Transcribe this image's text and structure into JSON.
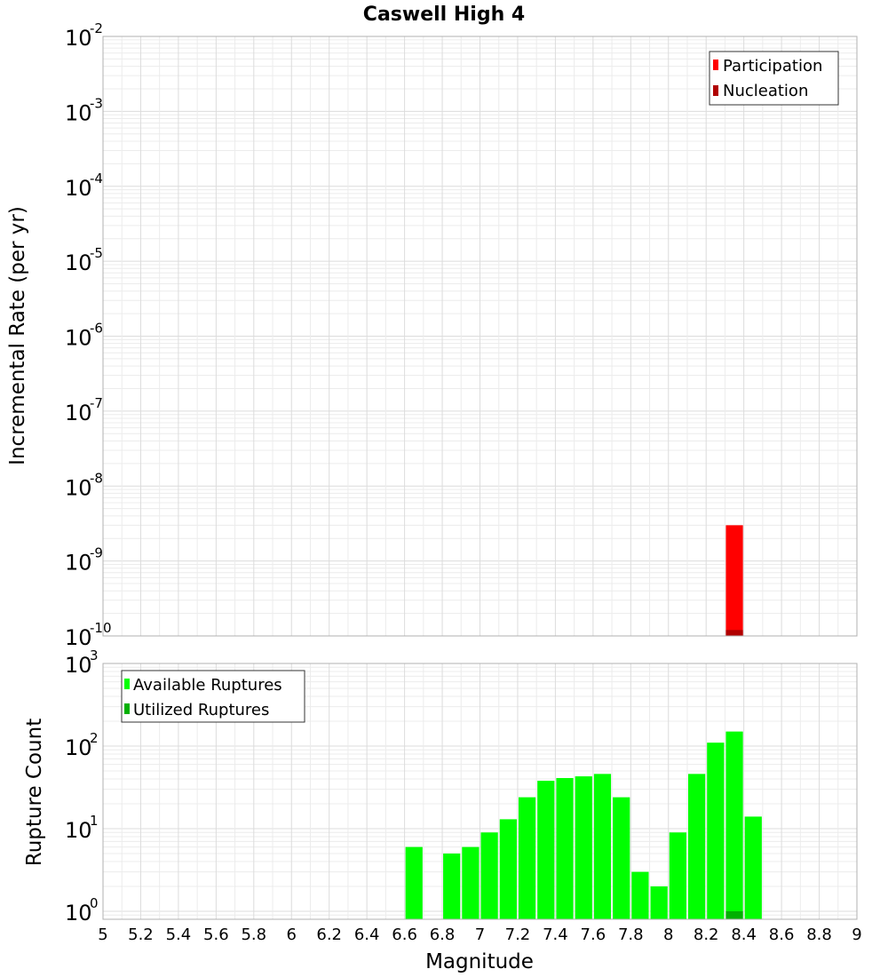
{
  "chart_data": [
    {
      "type": "bar",
      "title": "Caswell High 4",
      "xlabel": "",
      "ylabel": "Incremental Rate (per yr)",
      "yscale": "log",
      "ylim": [
        1e-10,
        0.01
      ],
      "xlim": [
        5,
        9
      ],
      "y_tick_base": "10",
      "y_tick_exponents": [
        "-10",
        "-9",
        "-8",
        "-7",
        "-6",
        "-5",
        "-4",
        "-3",
        "-2"
      ],
      "legend_position": "top-right",
      "series": [
        {
          "name": "Participation",
          "color": "#ff0000",
          "x": [
            8.35
          ],
          "values": [
            3e-09
          ]
        },
        {
          "name": "Nucleation",
          "color": "#b00000",
          "x": [
            8.35
          ],
          "values": [
            1.2e-10
          ]
        }
      ]
    },
    {
      "type": "bar",
      "title": "",
      "xlabel": "Magnitude",
      "ylabel": "Rupture Count",
      "yscale": "log",
      "ylim": [
        0.8,
        1000
      ],
      "xlim": [
        5,
        9
      ],
      "x_tick_labels": [
        "5",
        "5.2",
        "5.4",
        "5.6",
        "5.8",
        "6",
        "6.2",
        "6.4",
        "6.6",
        "6.8",
        "7",
        "7.2",
        "7.4",
        "7.6",
        "7.8",
        "8",
        "8.2",
        "8.4",
        "8.6",
        "8.8",
        "9"
      ],
      "y_tick_base": "10",
      "y_tick_exponents": [
        "0",
        "1",
        "2",
        "3"
      ],
      "legend_position": "top-left",
      "series": [
        {
          "name": "Available Ruptures",
          "color": "#00ff00",
          "x": [
            6.65,
            6.85,
            6.95,
            7.05,
            7.15,
            7.25,
            7.35,
            7.45,
            7.55,
            7.65,
            7.75,
            7.85,
            7.95,
            8.05,
            8.15,
            8.25,
            8.35,
            8.45
          ],
          "values": [
            6,
            5,
            6,
            9,
            13,
            24,
            38,
            41,
            43,
            46,
            24,
            3,
            2,
            9,
            46,
            110,
            150,
            14
          ]
        },
        {
          "name": "Utilized Ruptures",
          "color": "#00b000",
          "x": [
            8.35
          ],
          "values": [
            1
          ]
        }
      ]
    }
  ]
}
